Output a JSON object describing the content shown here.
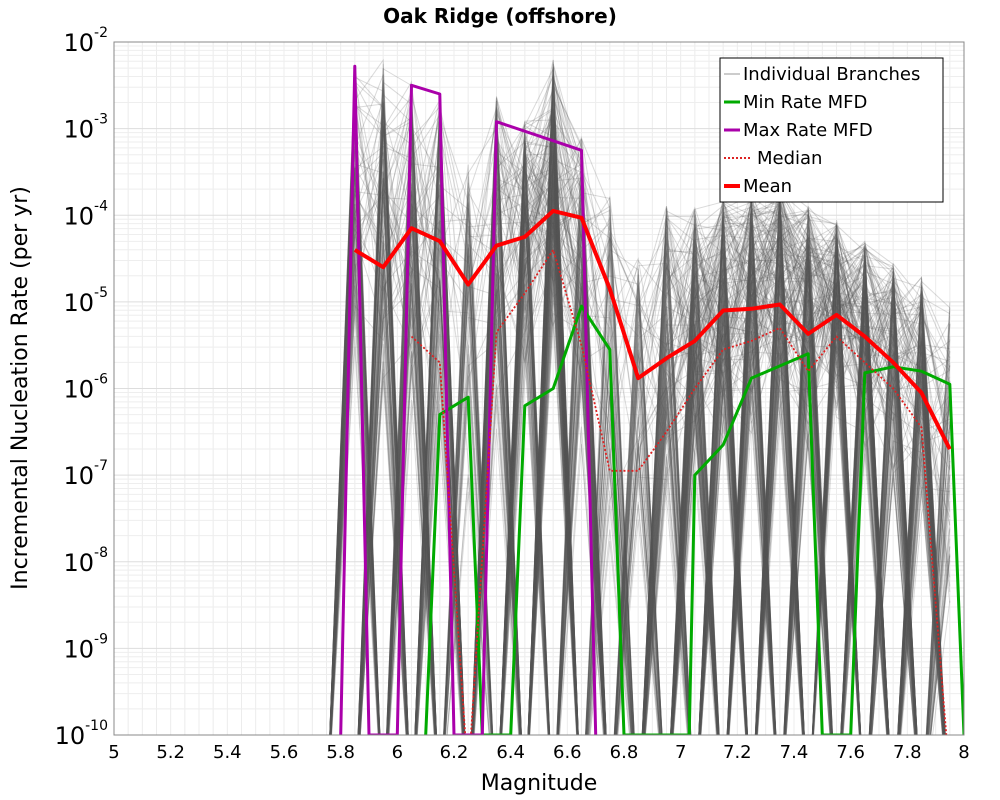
{
  "chart_data": {
    "type": "line",
    "title": "Oak Ridge (offshore)",
    "xlabel": "Magnitude",
    "ylabel": "Incremental Nucleation Rate (per yr)",
    "xlim": [
      5,
      8
    ],
    "ylim_log10": [
      -10,
      -2
    ],
    "y_scale": "log",
    "x_ticks": [
      "5",
      "5.2",
      "5.4",
      "5.6",
      "5.8",
      "6",
      "6.2",
      "6.4",
      "6.6",
      "6.8",
      "7",
      "7.2",
      "7.4",
      "7.6",
      "7.8",
      "8"
    ],
    "y_ticks": [
      {
        "base": "10",
        "exp": "-2",
        "value": -2
      },
      {
        "base": "10",
        "exp": "-3",
        "value": -3
      },
      {
        "base": "10",
        "exp": "-4",
        "value": -4
      },
      {
        "base": "10",
        "exp": "-5",
        "value": -5
      },
      {
        "base": "10",
        "exp": "-6",
        "value": -6
      },
      {
        "base": "10",
        "exp": "-7",
        "value": -7
      },
      {
        "base": "10",
        "exp": "-8",
        "value": -8
      },
      {
        "base": "10",
        "exp": "-9",
        "value": -9
      },
      {
        "base": "10",
        "exp": "-10",
        "value": -10
      }
    ],
    "magnitude_bins": [
      5.75,
      5.85,
      5.95,
      6.05,
      6.15,
      6.25,
      6.35,
      6.45,
      6.55,
      6.65,
      6.75,
      6.85,
      6.95,
      7.05,
      7.15,
      7.25,
      7.35,
      7.45,
      7.55,
      7.65,
      7.75,
      7.85,
      7.95
    ],
    "series": [
      {
        "name": "Mean",
        "color": "#ff0000",
        "style": "solid-thick",
        "x": [
          5.85,
          5.95,
          6.05,
          6.15,
          6.25,
          6.35,
          6.45,
          6.55,
          6.65,
          6.75,
          6.85,
          6.95,
          7.05,
          7.15,
          7.25,
          7.35,
          7.45,
          7.55,
          7.65,
          7.75,
          7.85,
          7.95
        ],
        "log10_y": [
          -4.4,
          -4.6,
          -4.15,
          -4.3,
          -4.8,
          -4.35,
          -4.25,
          -3.95,
          -4.03,
          -4.85,
          -5.88,
          -5.65,
          -5.45,
          -5.1,
          -5.08,
          -5.03,
          -5.37,
          -5.15,
          -5.4,
          -5.7,
          -6.05,
          -6.7
        ]
      },
      {
        "name": "Median",
        "color": "#dd2222",
        "style": "dotted",
        "x": [
          6.05,
          6.15,
          6.25,
          6.35,
          6.45,
          6.55,
          6.65,
          6.75,
          6.85,
          6.95,
          7.05,
          7.15,
          7.25,
          7.35,
          7.45,
          7.55,
          7.65,
          7.75,
          7.85,
          7.95
        ],
        "log10_y": [
          -5.4,
          -5.7,
          -10.5,
          -5.35,
          -4.9,
          -4.4,
          -5.5,
          -6.95,
          -6.95,
          -6.5,
          -6.0,
          -5.55,
          -5.45,
          -5.3,
          -5.8,
          -5.4,
          -5.7,
          -6.0,
          -6.45,
          -10.5
        ]
      },
      {
        "name": "Min Rate MFD",
        "color": "#00aa00",
        "style": "solid",
        "x": [
          6.1,
          6.15,
          6.25,
          6.3,
          6.4,
          6.45,
          6.55,
          6.65,
          6.75,
          6.8,
          7.03,
          7.05,
          7.15,
          7.25,
          7.45,
          7.5,
          7.6,
          7.65,
          7.75,
          7.85,
          7.95,
          8.0
        ],
        "log10_y": [
          -10.0,
          -6.3,
          -6.1,
          -10.0,
          -10.0,
          -6.2,
          -6.0,
          -5.05,
          -5.55,
          -10.0,
          -10.0,
          -7.0,
          -6.65,
          -5.88,
          -5.6,
          -10.0,
          -10.0,
          -5.82,
          -5.75,
          -5.8,
          -5.95,
          -10.0
        ]
      },
      {
        "name": "Max Rate MFD",
        "color": "#aa00aa",
        "style": "solid",
        "x": [
          5.8,
          5.85,
          5.9,
          6.0,
          6.05,
          6.15,
          6.2,
          6.3,
          6.35,
          6.65,
          6.7
        ],
        "log10_y": [
          -10.0,
          -2.28,
          -10.0,
          -10.0,
          -2.5,
          -2.6,
          -10.0,
          -10.0,
          -2.92,
          -3.25,
          -10.0
        ]
      }
    ],
    "individual_branches": {
      "name": "Individual Branches",
      "color": "#555555",
      "count_shown": 360,
      "upper_envelope_log10": [
        -10.5,
        -2.3,
        -2.2,
        -2.45,
        -2.65,
        -3.4,
        -2.6,
        -2.9,
        -2.2,
        -3.1,
        -3.6,
        -4.5,
        -3.85,
        -3.9,
        -3.8,
        -3.75,
        -3.65,
        -3.9,
        -4.05,
        -4.3,
        -4.55,
        -4.7,
        -5.0
      ],
      "median_log10": [
        -10.5,
        -4.5,
        -5.2,
        -5.4,
        -5.7,
        -6.4,
        -5.35,
        -4.9,
        -4.4,
        -5.5,
        -6.95,
        -6.95,
        -6.5,
        -6.0,
        -5.55,
        -5.45,
        -5.3,
        -5.8,
        -5.4,
        -5.7,
        -6.0,
        -6.45,
        -8.0
      ],
      "zero_probability": [
        1.0,
        0.72,
        0.66,
        0.62,
        0.64,
        0.78,
        0.6,
        0.55,
        0.42,
        0.55,
        0.8,
        0.8,
        0.62,
        0.48,
        0.4,
        0.38,
        0.36,
        0.42,
        0.4,
        0.42,
        0.48,
        0.56,
        0.72
      ]
    },
    "legend": {
      "position": "top-right",
      "entries": [
        {
          "label": "Individual Branches",
          "color": "#999999",
          "style": "thin"
        },
        {
          "label": "Min Rate MFD",
          "color": "#00aa00",
          "style": "solid"
        },
        {
          "label": "Max Rate MFD",
          "color": "#aa00aa",
          "style": "solid"
        },
        {
          "label": "Median",
          "color": "#dd2222",
          "style": "dotted"
        },
        {
          "label": "Mean",
          "color": "#ff0000",
          "style": "solid-thick"
        }
      ]
    },
    "grid": true
  }
}
